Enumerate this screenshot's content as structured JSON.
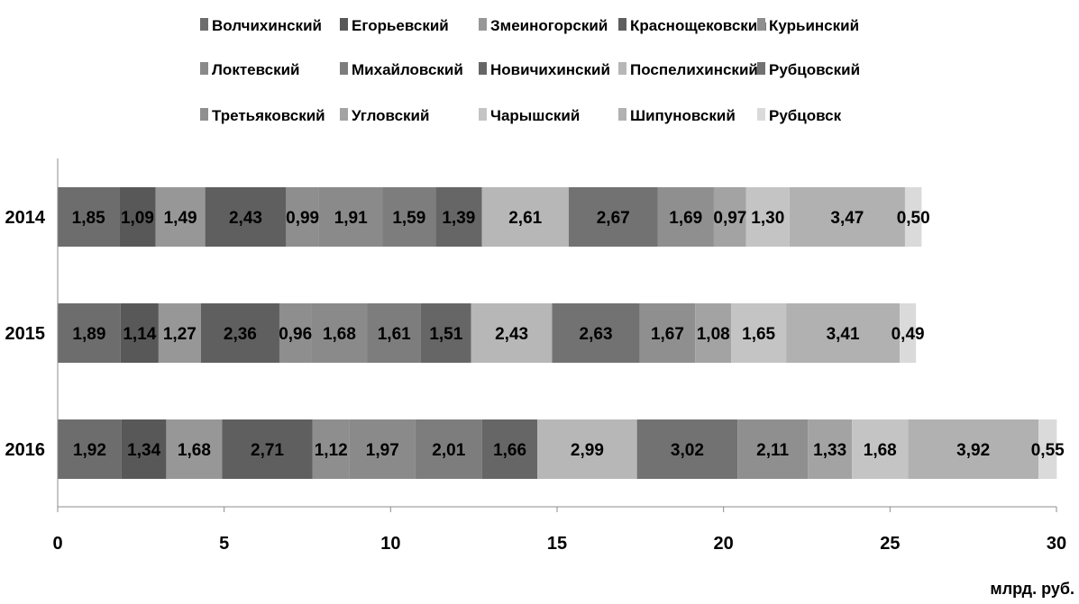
{
  "chart_data": {
    "type": "bar",
    "orientation": "horizontal",
    "stacked": true,
    "categories": [
      "2014",
      "2015",
      "2016"
    ],
    "series": [
      {
        "name": "Волчихинский",
        "color": "#6d6d6d",
        "values": [
          1.85,
          1.89,
          1.92
        ],
        "labels": [
          "1,85",
          "1,89",
          "1,92"
        ]
      },
      {
        "name": "Егорьевский",
        "color": "#585858",
        "values": [
          1.09,
          1.14,
          1.34
        ],
        "labels": [
          "1,09",
          "1,14",
          "1,34"
        ]
      },
      {
        "name": "Змеиногорский",
        "color": "#979797",
        "values": [
          1.49,
          1.27,
          1.68
        ],
        "labels": [
          "1,49",
          "1,27",
          "1,68"
        ]
      },
      {
        "name": "Краснощековский",
        "color": "#5f5f5f",
        "values": [
          2.43,
          2.36,
          2.71
        ],
        "labels": [
          "2,43",
          "2,36",
          "2,71"
        ]
      },
      {
        "name": "Курьинский",
        "color": "#8e8e8e",
        "values": [
          0.99,
          0.96,
          1.12
        ],
        "labels": [
          "0,99",
          "0,96",
          "1,12"
        ]
      },
      {
        "name": "Локтевский",
        "color": "#8a8a8a",
        "values": [
          1.91,
          1.68,
          1.97
        ],
        "labels": [
          "1,91",
          "1,68",
          "1,97"
        ]
      },
      {
        "name": "Михайловский",
        "color": "#7d7d7d",
        "values": [
          1.59,
          1.61,
          2.01
        ],
        "labels": [
          "1,59",
          "1,61",
          "2,01"
        ]
      },
      {
        "name": "Новичихинский",
        "color": "#666666",
        "values": [
          1.39,
          1.51,
          1.66
        ],
        "labels": [
          "1,39",
          "1,51",
          "1,66"
        ]
      },
      {
        "name": "Поспелихинский",
        "color": "#b7b7b7",
        "values": [
          2.61,
          2.43,
          2.99
        ],
        "labels": [
          "2,61",
          "2,43",
          "2,99"
        ]
      },
      {
        "name": "Рубцовский",
        "color": "#727272",
        "values": [
          2.67,
          2.63,
          3.02
        ],
        "labels": [
          "2,67",
          "2,63",
          "3,02"
        ]
      },
      {
        "name": "Третьяковский",
        "color": "#8f8f8f",
        "values": [
          1.69,
          1.67,
          2.11
        ],
        "labels": [
          "1,69",
          "1,67",
          "2,11"
        ]
      },
      {
        "name": "Угловский",
        "color": "#a3a3a3",
        "values": [
          0.97,
          1.08,
          1.33
        ],
        "labels": [
          "0,97",
          "1,08",
          "1,33"
        ]
      },
      {
        "name": "Чарышский",
        "color": "#c4c4c4",
        "values": [
          1.3,
          1.65,
          1.68
        ],
        "labels": [
          "1,30",
          "1,65",
          "1,68"
        ]
      },
      {
        "name": "Шипуновский",
        "color": "#b1b1b1",
        "values": [
          3.47,
          3.41,
          3.92
        ],
        "labels": [
          "3,47",
          "3,41",
          "3,92"
        ]
      },
      {
        "name": "Рубцовск",
        "color": "#dadada",
        "values": [
          0.5,
          0.49,
          0.55
        ],
        "labels": [
          "0,50",
          "0,49",
          "0,55"
        ]
      }
    ],
    "xlim": [
      0,
      30
    ],
    "xticks": [
      0,
      5,
      10,
      15,
      20,
      25,
      30
    ],
    "xtick_labels": [
      "0",
      "5",
      "10",
      "15",
      "20",
      "25",
      "30"
    ],
    "unit_label": "млрд. руб.",
    "legend": {
      "position": "top",
      "columns": 5
    },
    "grid": false
  }
}
